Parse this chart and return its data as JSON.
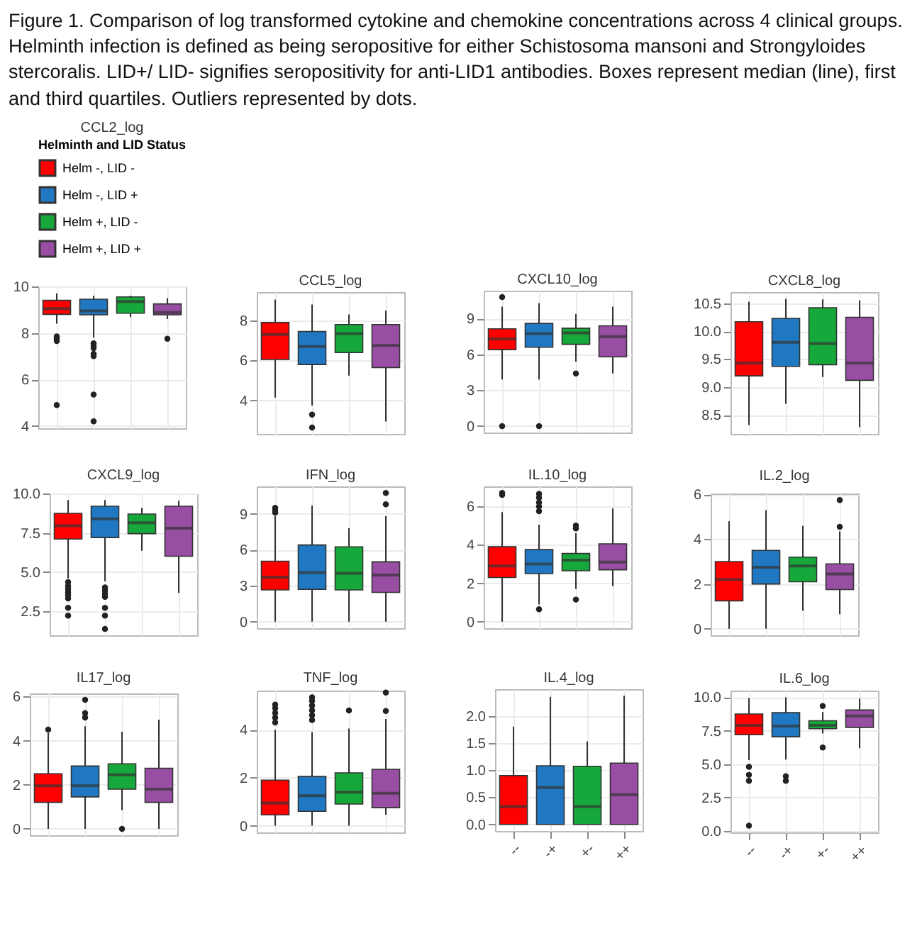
{
  "chart_data": [
    {
      "type": "other",
      "title": "Figure 1. Comparison of log transformed cytokine and chemokine concentrations across 4 clinical groups. Helminth infection is defined as being seropositive for either Schistosoma mansoni and Strongyloides stercoralis. LID+/ LID- signifies seropositivity for anti-LID1 antibodies. Boxes represent median (line), first and third quartiles. Outliers represented by dots."
    },
    {
      "type": "box",
      "title": "CCL2_log",
      "categories": [
        null,
        null,
        null,
        null
      ],
      "ylim": [
        3.9,
        10.0
      ],
      "yticks": [
        4,
        6,
        8,
        10
      ],
      "grid": true,
      "legend": "top left",
      "legend_title": "Helminth and LID Status",
      "series": [
        {
          "name": "Helm -, LID -",
          "color": "#ff0000",
          "boxes": [
            {
              "low": 8.4,
              "q1": 8.8,
              "median": 9.05,
              "q3": 9.4,
              "high": 9.7,
              "outliers": [
                7.85,
                7.75,
                7.65,
                4.9
              ]
            },
            null,
            null,
            null
          ]
        },
        {
          "name": "Helm -, LID +",
          "color": "#1f78c1",
          "boxes": [
            null,
            {
              "low": 7.8,
              "q1": 8.78,
              "median": 8.95,
              "q3": 9.45,
              "high": 9.6,
              "outliers": [
                7.55,
                7.45,
                7.35,
                7.1,
                7.0,
                5.35,
                4.2
              ]
            },
            null,
            null
          ]
        },
        {
          "name": "Helm +, LID -",
          "color": "#17a83b",
          "boxes": [
            null,
            null,
            {
              "low": 8.68,
              "q1": 8.85,
              "median": 9.35,
              "q3": 9.55,
              "high": 9.6
            },
            null
          ]
        },
        {
          "name": "Helm +, LID +",
          "color": "#984ea3",
          "boxes": [
            null,
            null,
            null,
            {
              "low": 8.6,
              "q1": 8.78,
              "median": 8.88,
              "q3": 9.25,
              "high": 9.5,
              "outliers": [
                7.75
              ]
            }
          ]
        }
      ]
    },
    {
      "type": "box",
      "title": "CCL5_log",
      "categories": [
        null,
        null,
        null,
        null
      ],
      "ylim": [
        2.33,
        9.42
      ],
      "yticks": [
        4,
        6,
        8
      ],
      "grid": true,
      "series": [
        {
          "color": "#ff0000",
          "boxes": [
            {
              "low": 4.15,
              "q1": 6.05,
              "median": 7.3,
              "q3": 7.9,
              "high": 9.05
            },
            null,
            null,
            null
          ]
        },
        {
          "color": "#1f78c1",
          "boxes": [
            null,
            {
              "low": 3.75,
              "q1": 5.8,
              "median": 6.7,
              "q3": 7.45,
              "high": 8.8,
              "outliers": [
                3.3,
                2.65
              ]
            },
            null,
            null
          ]
        },
        {
          "color": "#17a83b",
          "boxes": [
            null,
            null,
            {
              "low": 5.25,
              "q1": 6.4,
              "median": 7.35,
              "q3": 7.8,
              "high": 8.3
            },
            null
          ]
        },
        {
          "color": "#984ea3",
          "boxes": [
            null,
            null,
            null,
            {
              "low": 2.95,
              "q1": 5.65,
              "median": 6.75,
              "q3": 7.8,
              "high": 8.5
            }
          ]
        }
      ]
    },
    {
      "type": "box",
      "title": "CXCL10_log",
      "categories": [
        null,
        null,
        null,
        null
      ],
      "ylim": [
        -0.54,
        11.34
      ],
      "yticks": [
        0,
        3,
        6,
        9
      ],
      "grid": true,
      "series": [
        {
          "color": "#ff0000",
          "boxes": [
            {
              "low": 3.9,
              "q1": 6.4,
              "median": 7.3,
              "q3": 8.15,
              "high": 10.0,
              "outliers": [
                10.8,
                0
              ]
            },
            null,
            null,
            null
          ]
        },
        {
          "color": "#1f78c1",
          "boxes": [
            null,
            {
              "low": 3.9,
              "q1": 6.6,
              "median": 7.75,
              "q3": 8.6,
              "high": 10.3,
              "outliers": [
                0
              ]
            },
            null,
            null
          ]
        },
        {
          "color": "#17a83b",
          "boxes": [
            null,
            null,
            {
              "low": 5.4,
              "q1": 6.85,
              "median": 7.8,
              "q3": 8.2,
              "high": 9.4,
              "outliers": [
                4.4
              ]
            },
            null
          ]
        },
        {
          "color": "#984ea3",
          "boxes": [
            null,
            null,
            null,
            {
              "low": 4.4,
              "q1": 5.8,
              "median": 7.5,
              "q3": 8.4,
              "high": 10.0
            }
          ]
        }
      ]
    },
    {
      "type": "box",
      "title": "CXCL8_log",
      "categories": [
        null,
        null,
        null,
        null
      ],
      "ylim": [
        8.16,
        10.7
      ],
      "yticks": [
        8.5,
        {
          "value": 9,
          "label": "9.0"
        },
        9.5,
        {
          "value": 10,
          "label": "10.0"
        },
        10.5
      ],
      "grid": true,
      "series": [
        {
          "color": "#ff0000",
          "boxes": [
            {
              "low": 8.32,
              "q1": 9.2,
              "median": 9.43,
              "q3": 10.17,
              "high": 10.53
            },
            null,
            null,
            null
          ]
        },
        {
          "color": "#1f78c1",
          "boxes": [
            null,
            {
              "low": 8.7,
              "q1": 9.37,
              "median": 9.8,
              "q3": 10.23,
              "high": 10.58
            },
            null,
            null
          ]
        },
        {
          "color": "#17a83b",
          "boxes": [
            null,
            null,
            {
              "low": 9.18,
              "q1": 9.4,
              "median": 9.78,
              "q3": 10.42,
              "high": 10.57
            },
            null
          ]
        },
        {
          "color": "#984ea3",
          "boxes": [
            null,
            null,
            null,
            {
              "low": 8.28,
              "q1": 9.12,
              "median": 9.43,
              "q3": 10.25,
              "high": 10.55
            }
          ]
        }
      ]
    },
    {
      "type": "box",
      "title": "CXCL9_log",
      "categories": [
        null,
        null,
        null,
        null
      ],
      "ylim": [
        0.94,
        10.02
      ],
      "yticks": [
        2.5,
        {
          "value": 5,
          "label": "5.0"
        },
        7.5,
        {
          "value": 10,
          "label": "10.0"
        }
      ],
      "grid": true,
      "series": [
        {
          "color": "#ff0000",
          "boxes": [
            {
              "low": 4.6,
              "q1": 7.1,
              "median": 7.95,
              "q3": 8.75,
              "high": 9.6,
              "outliers": [
                4.35,
                4.1,
                3.9,
                3.7,
                3.5,
                3.3,
                2.7,
                2.2
              ]
            },
            null,
            null,
            null
          ]
        },
        {
          "color": "#1f78c1",
          "boxes": [
            null,
            {
              "low": 4.4,
              "q1": 7.2,
              "median": 8.4,
              "q3": 9.2,
              "high": 9.6,
              "outliers": [
                4.0,
                3.8,
                3.6,
                3.4,
                2.7,
                2.2,
                1.35
              ]
            },
            null,
            null
          ]
        },
        {
          "color": "#17a83b",
          "boxes": [
            null,
            null,
            {
              "low": 6.35,
              "q1": 7.45,
              "median": 8.15,
              "q3": 8.7,
              "high": 9.1
            },
            null
          ]
        },
        {
          "color": "#984ea3",
          "boxes": [
            null,
            null,
            null,
            {
              "low": 3.65,
              "q1": 6.0,
              "median": 7.8,
              "q3": 9.2,
              "high": 9.55
            }
          ]
        }
      ]
    },
    {
      "type": "box",
      "title": "IFN_log",
      "categories": [
        null,
        null,
        null,
        null
      ],
      "ylim": [
        -0.54,
        11.29
      ],
      "yticks": [
        0,
        3,
        6,
        9
      ],
      "grid": true,
      "series": [
        {
          "color": "#ff0000",
          "boxes": [
            {
              "low": 0,
              "q1": 2.65,
              "median": 3.7,
              "q3": 5.05,
              "high": 8.8,
              "outliers": [
                9.5,
                9.3,
                9.1
              ]
            },
            null,
            null,
            null
          ]
        },
        {
          "color": "#1f78c1",
          "boxes": [
            null,
            {
              "low": 0,
              "q1": 2.7,
              "median": 4.1,
              "q3": 6.4,
              "high": 9.7
            },
            null,
            null
          ]
        },
        {
          "color": "#17a83b",
          "boxes": [
            null,
            null,
            {
              "low": 0,
              "q1": 2.65,
              "median": 4.05,
              "q3": 6.25,
              "high": 7.8
            },
            null
          ]
        },
        {
          "color": "#984ea3",
          "boxes": [
            null,
            null,
            null,
            {
              "low": 0,
              "q1": 2.45,
              "median": 3.9,
              "q3": 5.0,
              "high": 8.8,
              "outliers": [
                9.8,
                10.75
              ]
            }
          ]
        }
      ]
    },
    {
      "type": "box",
      "title": "IL.10_log",
      "categories": [
        null,
        null,
        null,
        null
      ],
      "ylim": [
        -0.34,
        7.04
      ],
      "yticks": [
        0,
        2,
        4,
        6
      ],
      "grid": true,
      "series": [
        {
          "color": "#ff0000",
          "boxes": [
            {
              "low": 0,
              "q1": 2.3,
              "median": 2.9,
              "q3": 3.9,
              "high": 5.7,
              "outliers": [
                6.7,
                6.6
              ]
            },
            null,
            null,
            null
          ]
        },
        {
          "color": "#1f78c1",
          "boxes": [
            null,
            {
              "low": 0.9,
              "q1": 2.5,
              "median": 3.0,
              "q3": 3.75,
              "high": 5.05,
              "outliers": [
                5.75,
                6.0,
                6.2,
                6.45,
                6.65,
                0.65
              ]
            },
            null,
            null
          ]
        },
        {
          "color": "#17a83b",
          "boxes": [
            null,
            null,
            {
              "low": 1.7,
              "q1": 2.65,
              "median": 3.2,
              "q3": 3.55,
              "high": 4.6,
              "outliers": [
                4.85,
                5.0,
                1.15
              ]
            },
            null
          ]
        },
        {
          "color": "#984ea3",
          "boxes": [
            null,
            null,
            null,
            {
              "low": 1.85,
              "q1": 2.7,
              "median": 3.1,
              "q3": 4.05,
              "high": 5.9
            }
          ]
        }
      ]
    },
    {
      "type": "box",
      "title": "IL.2_log",
      "categories": [
        null,
        null,
        null,
        null
      ],
      "ylim": [
        -0.29,
        6.04
      ],
      "yticks": [
        0,
        2,
        4,
        6
      ],
      "grid": true,
      "series": [
        {
          "color": "#ff0000",
          "boxes": [
            {
              "low": 0,
              "q1": 1.25,
              "median": 2.2,
              "q3": 3.0,
              "high": 4.8
            },
            null,
            null,
            null
          ]
        },
        {
          "color": "#1f78c1",
          "boxes": [
            null,
            {
              "low": 0,
              "q1": 2.0,
              "median": 2.75,
              "q3": 3.5,
              "high": 5.3
            },
            null,
            null
          ]
        },
        {
          "color": "#17a83b",
          "boxes": [
            null,
            null,
            {
              "low": 0.8,
              "q1": 2.1,
              "median": 2.8,
              "q3": 3.2,
              "high": 4.6
            },
            null
          ]
        },
        {
          "color": "#984ea3",
          "boxes": [
            null,
            null,
            null,
            {
              "low": 0.65,
              "q1": 1.75,
              "median": 2.45,
              "q3": 2.9,
              "high": 4.35,
              "outliers": [
                4.55,
                5.75
              ]
            }
          ]
        }
      ]
    },
    {
      "type": "box",
      "title": "IL17_log",
      "categories": [
        null,
        null,
        null,
        null
      ],
      "ylim": [
        -0.29,
        6.14
      ],
      "yticks": [
        0,
        2,
        4,
        6
      ],
      "grid": true,
      "series": [
        {
          "color": "#ff0000",
          "boxes": [
            {
              "low": 0,
              "q1": 1.2,
              "median": 1.95,
              "q3": 2.5,
              "high": 4.35,
              "outliers": [
                4.5
              ]
            },
            null,
            null,
            null
          ]
        },
        {
          "color": "#1f78c1",
          "boxes": [
            null,
            {
              "low": 0,
              "q1": 1.45,
              "median": 1.95,
              "q3": 2.85,
              "high": 4.65,
              "outliers": [
                5.05,
                5.25,
                5.85
              ]
            },
            null,
            null
          ]
        },
        {
          "color": "#17a83b",
          "boxes": [
            null,
            null,
            {
              "low": 0.85,
              "q1": 1.8,
              "median": 2.45,
              "q3": 2.95,
              "high": 4.4,
              "outliers": [
                0
              ]
            },
            null
          ]
        },
        {
          "color": "#984ea3",
          "boxes": [
            null,
            null,
            null,
            {
              "low": 0,
              "q1": 1.2,
              "median": 1.8,
              "q3": 2.75,
              "high": 4.95
            }
          ]
        }
      ]
    },
    {
      "type": "box",
      "title": "TNF_log",
      "categories": [
        null,
        null,
        null,
        null
      ],
      "ylim": [
        -0.28,
        5.63
      ],
      "yticks": [
        0,
        2,
        4
      ],
      "grid": true,
      "series": [
        {
          "color": "#ff0000",
          "boxes": [
            {
              "low": 0,
              "q1": 0.45,
              "median": 0.95,
              "q3": 1.9,
              "high": 4.0,
              "outliers": [
                4.3,
                4.5,
                4.7,
                4.9,
                5.05
              ]
            },
            null,
            null,
            null
          ]
        },
        {
          "color": "#1f78c1",
          "boxes": [
            null,
            {
              "low": 0,
              "q1": 0.6,
              "median": 1.25,
              "q3": 2.05,
              "high": 3.9,
              "outliers": [
                4.4,
                4.6,
                4.8,
                5.0,
                5.2,
                5.35
              ]
            },
            null,
            null
          ]
        },
        {
          "color": "#17a83b",
          "boxes": [
            null,
            null,
            {
              "low": 0,
              "q1": 0.9,
              "median": 1.4,
              "q3": 2.2,
              "high": 4.05,
              "outliers": [
                4.8
              ]
            },
            null
          ]
        },
        {
          "color": "#984ea3",
          "boxes": [
            null,
            null,
            null,
            {
              "low": 0.45,
              "q1": 0.75,
              "median": 1.35,
              "q3": 2.35,
              "high": 4.45,
              "outliers": [
                4.78,
                5.55
              ]
            }
          ]
        }
      ]
    },
    {
      "type": "box",
      "title": "IL.4_log",
      "categories": [
        "--",
        "-+",
        "+-",
        "++"
      ],
      "ylim": [
        -0.12,
        2.49
      ],
      "yticks": [
        {
          "value": 0,
          "label": "0.0"
        },
        0.5,
        {
          "value": 1,
          "label": "1.0"
        },
        1.5,
        {
          "value": 2,
          "label": "2.0"
        }
      ],
      "grid": true,
      "series": [
        {
          "color": "#ff0000",
          "boxes": [
            {
              "low": 0,
              "q1": 0,
              "median": 0.33,
              "q3": 0.9,
              "high": 1.8
            },
            null,
            null,
            null
          ]
        },
        {
          "color": "#1f78c1",
          "boxes": [
            null,
            {
              "low": 0,
              "q1": 0,
              "median": 0.68,
              "q3": 1.08,
              "high": 2.35
            },
            null,
            null
          ]
        },
        {
          "color": "#17a83b",
          "boxes": [
            null,
            null,
            {
              "low": 0,
              "q1": 0,
              "median": 0.33,
              "q3": 1.07,
              "high": 1.53
            },
            null
          ]
        },
        {
          "color": "#984ea3",
          "boxes": [
            null,
            null,
            null,
            {
              "low": 0,
              "q1": 0,
              "median": 0.55,
              "q3": 1.13,
              "high": 2.37
            }
          ]
        }
      ]
    },
    {
      "type": "box",
      "title": "IL.6_log",
      "categories": [
        "--",
        "-+",
        "+-",
        "++"
      ],
      "ylim": [
        -0.1,
        10.5
      ],
      "yticks": [
        {
          "value": 0,
          "label": "0.0"
        },
        2.5,
        {
          "value": 5,
          "label": "5.0"
        },
        7.5,
        {
          "value": 10,
          "label": "10.0"
        }
      ],
      "grid": true,
      "series": [
        {
          "color": "#ff0000",
          "boxes": [
            {
              "low": 5.3,
              "q1": 7.2,
              "median": 7.9,
              "q3": 8.75,
              "high": 9.95,
              "outliers": [
                4.8,
                4.2,
                3.75,
                0.4
              ]
            },
            null,
            null,
            null
          ]
        },
        {
          "color": "#1f78c1",
          "boxes": [
            null,
            {
              "low": 5.35,
              "q1": 7.05,
              "median": 7.85,
              "q3": 8.85,
              "high": 10.0,
              "outliers": [
                4.1,
                3.75
              ]
            },
            null,
            null
          ]
        },
        {
          "color": "#17a83b",
          "boxes": [
            null,
            null,
            {
              "low": 7.3,
              "q1": 7.65,
              "median": 7.9,
              "q3": 8.25,
              "high": 8.9,
              "outliers": [
                9.35,
                6.25
              ]
            },
            null
          ]
        },
        {
          "color": "#984ea3",
          "boxes": [
            null,
            null,
            null,
            {
              "low": 6.2,
              "q1": 7.75,
              "median": 8.6,
              "q3": 9.05,
              "high": 9.9
            }
          ]
        }
      ]
    }
  ]
}
